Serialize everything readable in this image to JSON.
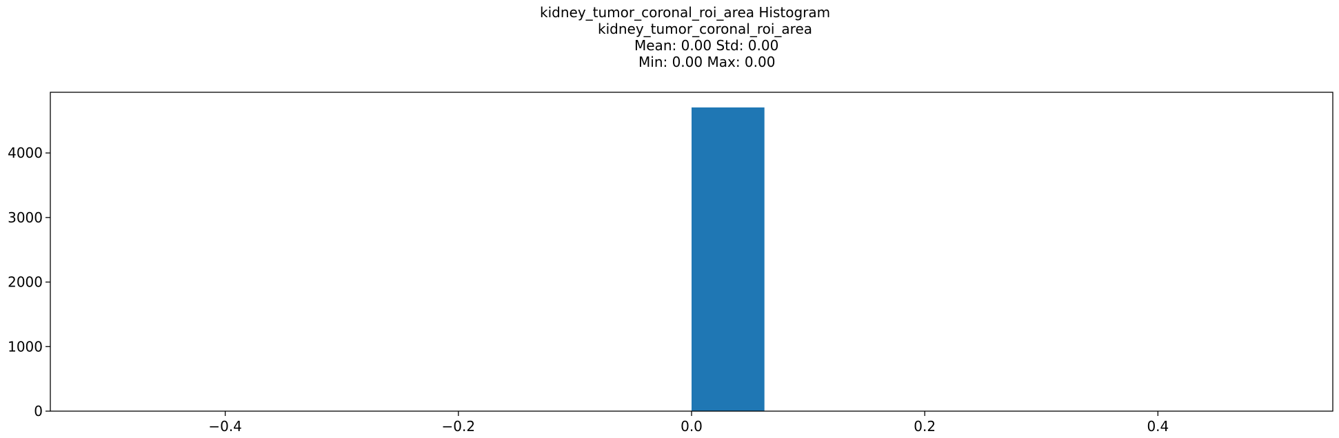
{
  "chart_data": {
    "type": "bar",
    "title_lines": [
      "kidney_tumor_coronal_roi_area Histogram",
      "kidney_tumor_coronal_roi_area",
      "Mean: 0.00 Std: 0.00",
      "Min: 0.00 Max: 0.00"
    ],
    "xlabel": "",
    "ylabel": "",
    "xlim": [
      -0.55,
      0.55
    ],
    "ylim": [
      0,
      4940
    ],
    "x_ticks": [
      -0.4,
      -0.2,
      0.0,
      0.2,
      0.4
    ],
    "x_tick_labels": [
      "−0.4",
      "−0.2",
      "0.0",
      "0.2",
      "0.4"
    ],
    "y_ticks": [
      0,
      1000,
      2000,
      3000,
      4000
    ],
    "y_tick_labels": [
      "0",
      "1000",
      "2000",
      "3000",
      "4000"
    ],
    "bars": [
      {
        "x0": 0.0,
        "x1": 0.0625,
        "value": 4705
      }
    ],
    "bar_color": "#1f77b4",
    "grid": false
  }
}
